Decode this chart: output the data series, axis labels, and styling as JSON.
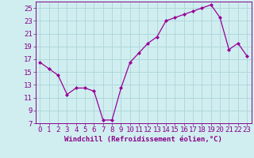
{
  "x": [
    0,
    1,
    2,
    3,
    4,
    5,
    6,
    7,
    8,
    9,
    10,
    11,
    12,
    13,
    14,
    15,
    16,
    17,
    18,
    19,
    20,
    21,
    22,
    23
  ],
  "y": [
    16.5,
    15.5,
    14.5,
    11.5,
    12.5,
    12.5,
    12.0,
    7.5,
    7.5,
    12.5,
    16.5,
    18.0,
    19.5,
    20.5,
    23.0,
    23.5,
    24.0,
    24.5,
    25.0,
    25.5,
    23.5,
    18.5,
    19.5,
    17.5
  ],
  "line_color": "#990099",
  "marker": "D",
  "marker_size": 2,
  "bg_color": "#d0eef0",
  "grid_color": "#b0d8dc",
  "xlabel": "Windchill (Refroidissement éolien,°C)",
  "xlim_left": -0.5,
  "xlim_right": 23.5,
  "ylim_bottom": 7,
  "ylim_top": 26,
  "yticks": [
    7,
    9,
    11,
    13,
    15,
    17,
    19,
    21,
    23,
    25
  ],
  "xticks": [
    0,
    1,
    2,
    3,
    4,
    5,
    6,
    7,
    8,
    9,
    10,
    11,
    12,
    13,
    14,
    15,
    16,
    17,
    18,
    19,
    20,
    21,
    22,
    23
  ],
  "xlabel_fontsize": 6.5,
  "tick_fontsize": 6.5,
  "label_color": "#880088"
}
